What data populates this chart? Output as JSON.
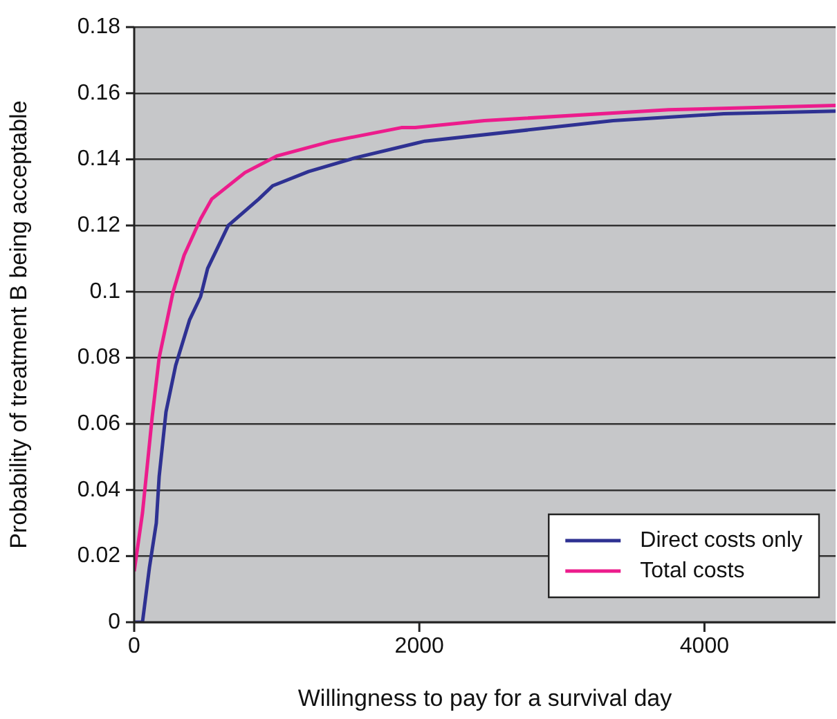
{
  "chart_data": {
    "type": "line",
    "xlabel": "Willingness to pay for a survival day",
    "ylabel": "Probability of treatment B being acceptable",
    "xlim": [
      0,
      4920
    ],
    "xticks": [
      0,
      2000,
      4000
    ],
    "ylim": [
      0,
      0.18
    ],
    "yticks": [
      0,
      0.02,
      0.04,
      0.06,
      0.08,
      0.1,
      0.12,
      0.14,
      0.16,
      0.18
    ],
    "grid": "y",
    "legend": "bottom right",
    "marker": "none",
    "line_style": "solid",
    "series": [
      {
        "name": "Direct costs only",
        "color": "#2e3192",
        "x": [
          0,
          58,
          107,
          155,
          175,
          223,
          291,
          388,
          466,
          515,
          660,
          874,
          971,
          1223,
          1553,
          1971,
          2039,
          3359,
          4136,
          4920
        ],
        "values": [
          0,
          0,
          0.0166,
          0.03,
          0.044,
          0.0636,
          0.0777,
          0.0914,
          0.0985,
          0.107,
          0.12,
          0.128,
          0.132,
          0.1363,
          0.1405,
          0.1448,
          0.1455,
          0.1517,
          0.1538,
          0.1546
        ]
      },
      {
        "name": "Total costs",
        "color": "#ec1c8c",
        "x": [
          0,
          58,
          126,
          175,
          272,
          350,
          466,
          544,
          777,
          1000,
          1388,
          1874,
          1971,
          2456,
          3748,
          4920
        ],
        "values": [
          0.0154,
          0.033,
          0.062,
          0.08,
          0.0998,
          0.111,
          0.122,
          0.128,
          0.136,
          0.141,
          0.1455,
          0.1496,
          0.1496,
          0.1517,
          0.155,
          0.1563
        ]
      }
    ]
  }
}
